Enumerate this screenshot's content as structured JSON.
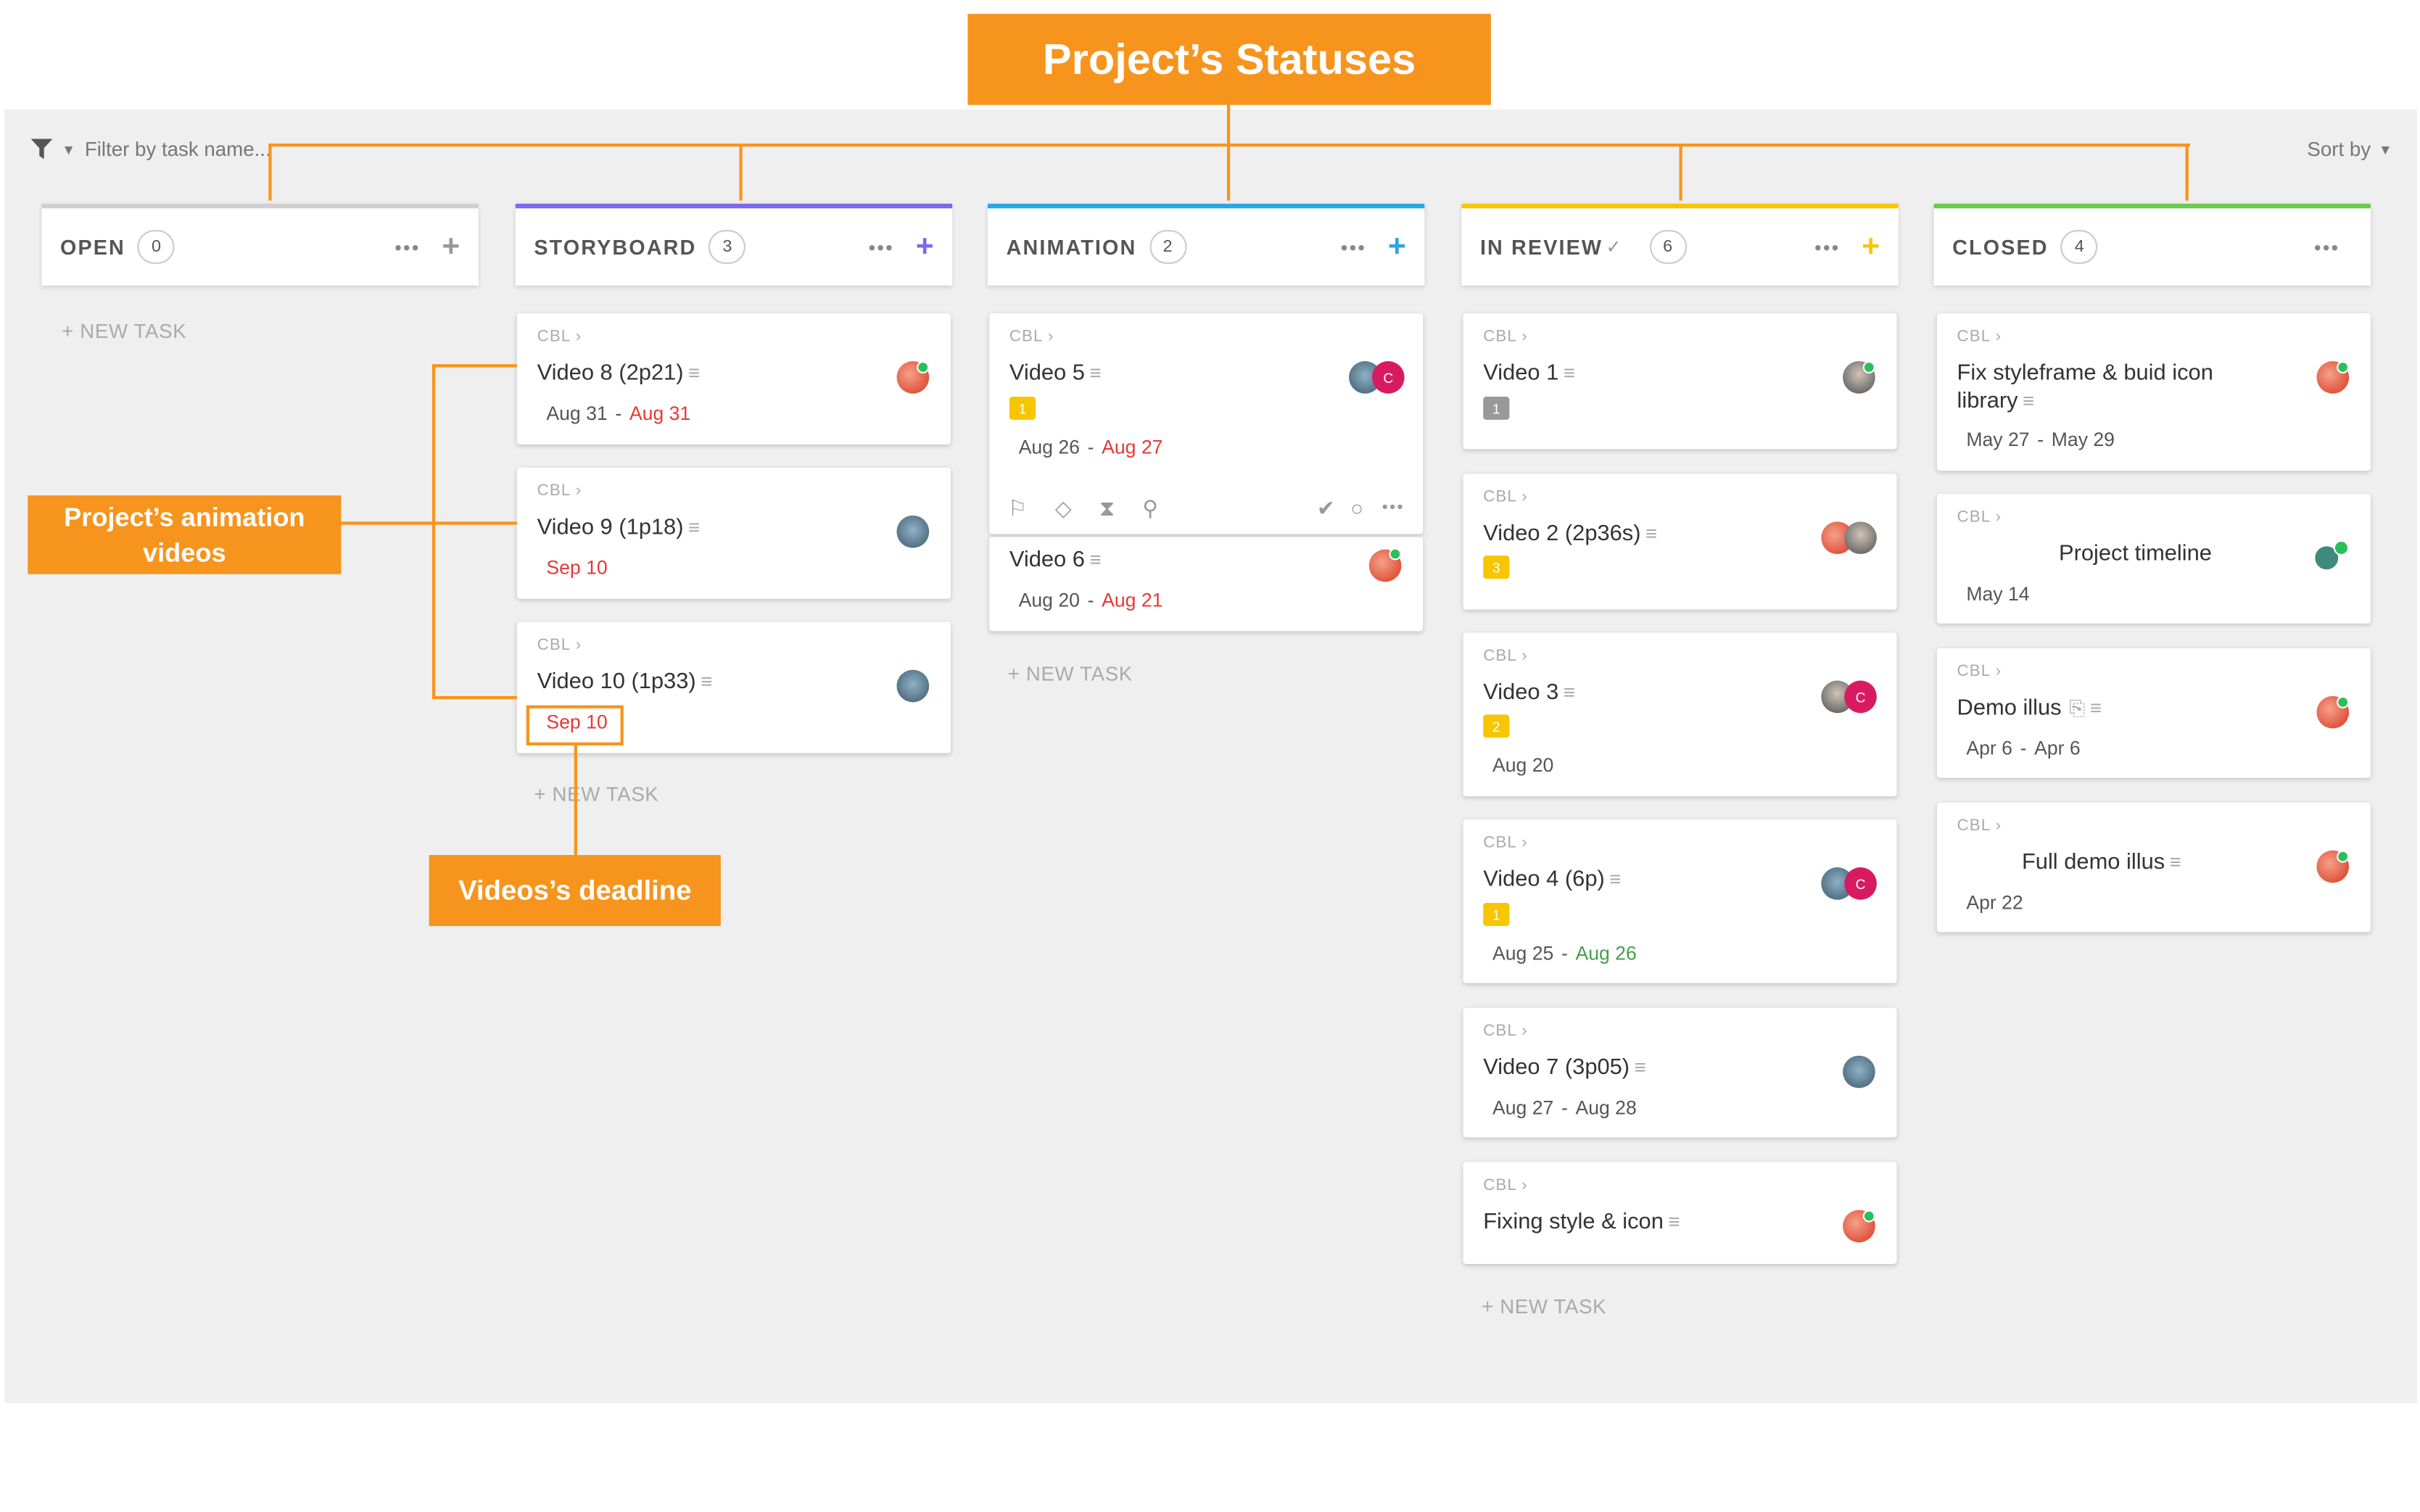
{
  "callouts": {
    "statuses": "Project’s Statuses",
    "animation_videos": "Project’s animation videos",
    "deadline": "Videos’s deadline"
  },
  "toolbar": {
    "filter_placeholder": "Filter by task name...",
    "sort_label": "Sort by"
  },
  "new_task_label": "+ NEW TASK",
  "columns": {
    "open": {
      "title": "OPEN",
      "count": "0",
      "color": "#d0d0d0"
    },
    "storyboard": {
      "title": "STORYBOARD",
      "count": "3",
      "color": "#7b68ee"
    },
    "animation": {
      "title": "ANIMATION",
      "count": "2",
      "color": "#2aa6e0"
    },
    "in_review": {
      "title": "IN REVIEW",
      "count": "6",
      "color": "#f7c600"
    },
    "closed": {
      "title": "CLOSED",
      "count": "4",
      "color": "#6bc950"
    }
  },
  "crumb": "CBL  ›",
  "icons": {
    "filter": "funnel-icon",
    "sort": "chevron-down-icon",
    "more": "dots-icon",
    "add": "plus-icon",
    "flag": "flag-icon",
    "tag": "tag-icon",
    "timer": "hourglass-icon",
    "dependency": "dependency-icon",
    "check": "check-icon",
    "status": "circle-icon",
    "attachment": "paperclip-icon",
    "description": "lines-icon"
  },
  "cards": {
    "storyboard": [
      {
        "title": "Video 8 (2p21)",
        "start": "Aug 31",
        "due": "Aug 31"
      },
      {
        "title": "Video 9 (1p18)",
        "due": "Sep 10"
      },
      {
        "title": "Video 10 (1p33)",
        "due": "Sep 10"
      }
    ],
    "animation": [
      {
        "title": "Video 5",
        "priority": "1",
        "start": "Aug 26",
        "due": "Aug 27"
      },
      {
        "title": "Video 6",
        "start": "Aug 20",
        "due": "Aug 21"
      }
    ],
    "in_review": [
      {
        "title": "Video 1",
        "priority": "1"
      },
      {
        "title": "Video 2 (2p36s)",
        "priority": "3"
      },
      {
        "title": "Video 3",
        "priority": "2",
        "due": "Aug 20"
      },
      {
        "title": "Video 4 (6p)",
        "priority": "1",
        "start": "Aug 25",
        "due": "Aug 26"
      },
      {
        "title": "Video 7 (3p05)",
        "start": "Aug 27",
        "due": "Aug 28"
      },
      {
        "title": "Fixing style & icon"
      }
    ],
    "closed": [
      {
        "title": "Fix styleframe & buid icon library",
        "start": "May 27",
        "due": "May 29"
      },
      {
        "title": "Project timeline",
        "due": "May 14"
      },
      {
        "title": "Demo illus",
        "start": "Apr 6",
        "due": "Apr 6"
      },
      {
        "title": "Full demo illus",
        "due": "Apr 22"
      }
    ]
  },
  "avatar_initial": "C"
}
